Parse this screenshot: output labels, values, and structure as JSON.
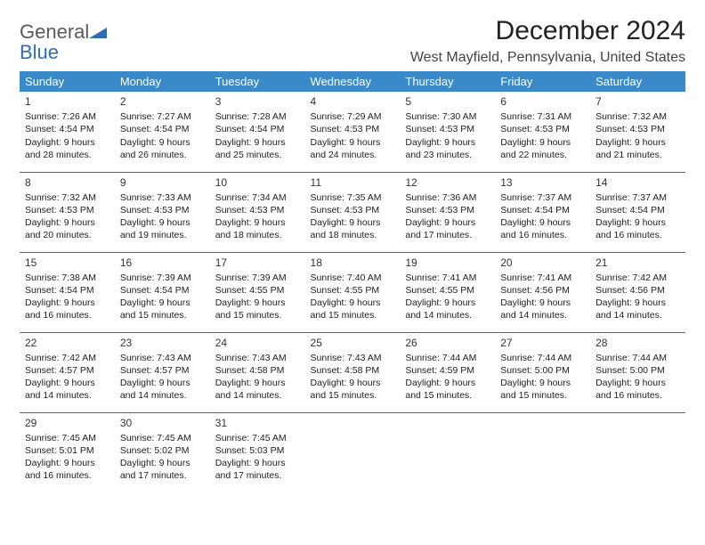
{
  "logo": {
    "line1": "General",
    "line2": "Blue"
  },
  "title": "December 2024",
  "location": "West Mayfield, Pennsylvania, United States",
  "colors": {
    "header_bg": "#3a8ac9",
    "header_text": "#ffffff",
    "row_border": "#3a6fa0",
    "logo_gray": "#5a5a5a",
    "logo_blue": "#2a6fb5",
    "body_text": "#222222",
    "background": "#ffffff"
  },
  "typography": {
    "title_fontsize": 30,
    "location_fontsize": 16,
    "th_fontsize": 13,
    "cell_fontsize": 10.5,
    "daynum_fontsize": 12
  },
  "day_headers": [
    "Sunday",
    "Monday",
    "Tuesday",
    "Wednesday",
    "Thursday",
    "Friday",
    "Saturday"
  ],
  "weeks": [
    [
      {
        "n": "1",
        "sunrise": "Sunrise: 7:26 AM",
        "sunset": "Sunset: 4:54 PM",
        "day1": "Daylight: 9 hours",
        "day2": "and 28 minutes."
      },
      {
        "n": "2",
        "sunrise": "Sunrise: 7:27 AM",
        "sunset": "Sunset: 4:54 PM",
        "day1": "Daylight: 9 hours",
        "day2": "and 26 minutes."
      },
      {
        "n": "3",
        "sunrise": "Sunrise: 7:28 AM",
        "sunset": "Sunset: 4:54 PM",
        "day1": "Daylight: 9 hours",
        "day2": "and 25 minutes."
      },
      {
        "n": "4",
        "sunrise": "Sunrise: 7:29 AM",
        "sunset": "Sunset: 4:53 PM",
        "day1": "Daylight: 9 hours",
        "day2": "and 24 minutes."
      },
      {
        "n": "5",
        "sunrise": "Sunrise: 7:30 AM",
        "sunset": "Sunset: 4:53 PM",
        "day1": "Daylight: 9 hours",
        "day2": "and 23 minutes."
      },
      {
        "n": "6",
        "sunrise": "Sunrise: 7:31 AM",
        "sunset": "Sunset: 4:53 PM",
        "day1": "Daylight: 9 hours",
        "day2": "and 22 minutes."
      },
      {
        "n": "7",
        "sunrise": "Sunrise: 7:32 AM",
        "sunset": "Sunset: 4:53 PM",
        "day1": "Daylight: 9 hours",
        "day2": "and 21 minutes."
      }
    ],
    [
      {
        "n": "8",
        "sunrise": "Sunrise: 7:32 AM",
        "sunset": "Sunset: 4:53 PM",
        "day1": "Daylight: 9 hours",
        "day2": "and 20 minutes."
      },
      {
        "n": "9",
        "sunrise": "Sunrise: 7:33 AM",
        "sunset": "Sunset: 4:53 PM",
        "day1": "Daylight: 9 hours",
        "day2": "and 19 minutes."
      },
      {
        "n": "10",
        "sunrise": "Sunrise: 7:34 AM",
        "sunset": "Sunset: 4:53 PM",
        "day1": "Daylight: 9 hours",
        "day2": "and 18 minutes."
      },
      {
        "n": "11",
        "sunrise": "Sunrise: 7:35 AM",
        "sunset": "Sunset: 4:53 PM",
        "day1": "Daylight: 9 hours",
        "day2": "and 18 minutes."
      },
      {
        "n": "12",
        "sunrise": "Sunrise: 7:36 AM",
        "sunset": "Sunset: 4:53 PM",
        "day1": "Daylight: 9 hours",
        "day2": "and 17 minutes."
      },
      {
        "n": "13",
        "sunrise": "Sunrise: 7:37 AM",
        "sunset": "Sunset: 4:54 PM",
        "day1": "Daylight: 9 hours",
        "day2": "and 16 minutes."
      },
      {
        "n": "14",
        "sunrise": "Sunrise: 7:37 AM",
        "sunset": "Sunset: 4:54 PM",
        "day1": "Daylight: 9 hours",
        "day2": "and 16 minutes."
      }
    ],
    [
      {
        "n": "15",
        "sunrise": "Sunrise: 7:38 AM",
        "sunset": "Sunset: 4:54 PM",
        "day1": "Daylight: 9 hours",
        "day2": "and 16 minutes."
      },
      {
        "n": "16",
        "sunrise": "Sunrise: 7:39 AM",
        "sunset": "Sunset: 4:54 PM",
        "day1": "Daylight: 9 hours",
        "day2": "and 15 minutes."
      },
      {
        "n": "17",
        "sunrise": "Sunrise: 7:39 AM",
        "sunset": "Sunset: 4:55 PM",
        "day1": "Daylight: 9 hours",
        "day2": "and 15 minutes."
      },
      {
        "n": "18",
        "sunrise": "Sunrise: 7:40 AM",
        "sunset": "Sunset: 4:55 PM",
        "day1": "Daylight: 9 hours",
        "day2": "and 15 minutes."
      },
      {
        "n": "19",
        "sunrise": "Sunrise: 7:41 AM",
        "sunset": "Sunset: 4:55 PM",
        "day1": "Daylight: 9 hours",
        "day2": "and 14 minutes."
      },
      {
        "n": "20",
        "sunrise": "Sunrise: 7:41 AM",
        "sunset": "Sunset: 4:56 PM",
        "day1": "Daylight: 9 hours",
        "day2": "and 14 minutes."
      },
      {
        "n": "21",
        "sunrise": "Sunrise: 7:42 AM",
        "sunset": "Sunset: 4:56 PM",
        "day1": "Daylight: 9 hours",
        "day2": "and 14 minutes."
      }
    ],
    [
      {
        "n": "22",
        "sunrise": "Sunrise: 7:42 AM",
        "sunset": "Sunset: 4:57 PM",
        "day1": "Daylight: 9 hours",
        "day2": "and 14 minutes."
      },
      {
        "n": "23",
        "sunrise": "Sunrise: 7:43 AM",
        "sunset": "Sunset: 4:57 PM",
        "day1": "Daylight: 9 hours",
        "day2": "and 14 minutes."
      },
      {
        "n": "24",
        "sunrise": "Sunrise: 7:43 AM",
        "sunset": "Sunset: 4:58 PM",
        "day1": "Daylight: 9 hours",
        "day2": "and 14 minutes."
      },
      {
        "n": "25",
        "sunrise": "Sunrise: 7:43 AM",
        "sunset": "Sunset: 4:58 PM",
        "day1": "Daylight: 9 hours",
        "day2": "and 15 minutes."
      },
      {
        "n": "26",
        "sunrise": "Sunrise: 7:44 AM",
        "sunset": "Sunset: 4:59 PM",
        "day1": "Daylight: 9 hours",
        "day2": "and 15 minutes."
      },
      {
        "n": "27",
        "sunrise": "Sunrise: 7:44 AM",
        "sunset": "Sunset: 5:00 PM",
        "day1": "Daylight: 9 hours",
        "day2": "and 15 minutes."
      },
      {
        "n": "28",
        "sunrise": "Sunrise: 7:44 AM",
        "sunset": "Sunset: 5:00 PM",
        "day1": "Daylight: 9 hours",
        "day2": "and 16 minutes."
      }
    ],
    [
      {
        "n": "29",
        "sunrise": "Sunrise: 7:45 AM",
        "sunset": "Sunset: 5:01 PM",
        "day1": "Daylight: 9 hours",
        "day2": "and 16 minutes."
      },
      {
        "n": "30",
        "sunrise": "Sunrise: 7:45 AM",
        "sunset": "Sunset: 5:02 PM",
        "day1": "Daylight: 9 hours",
        "day2": "and 17 minutes."
      },
      {
        "n": "31",
        "sunrise": "Sunrise: 7:45 AM",
        "sunset": "Sunset: 5:03 PM",
        "day1": "Daylight: 9 hours",
        "day2": "and 17 minutes."
      },
      null,
      null,
      null,
      null
    ]
  ]
}
